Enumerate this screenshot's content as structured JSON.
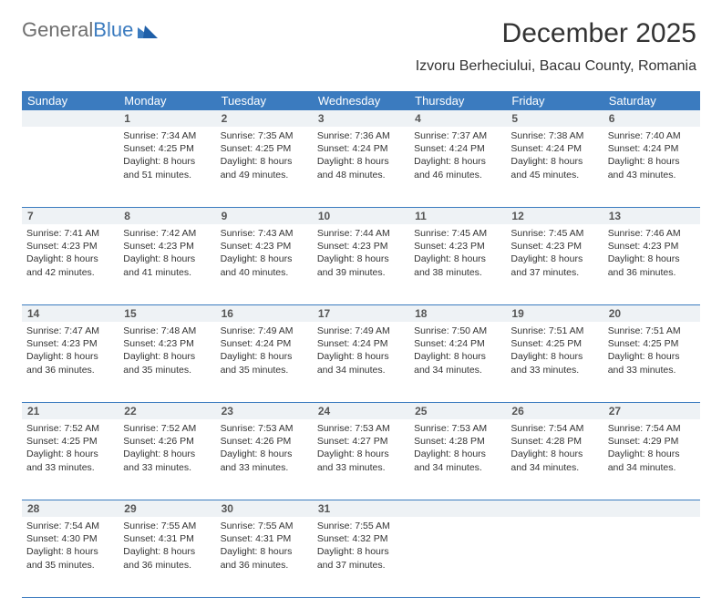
{
  "logo": {
    "part1": "General",
    "part2": "Blue"
  },
  "title": "December 2025",
  "subtitle": "Izvoru Berheciului, Bacau County, Romania",
  "colors": {
    "header_bg": "#3b7bbf",
    "header_text": "#ffffff",
    "daynum_bg": "#eef2f5",
    "daynum_text": "#555555",
    "body_text": "#333333",
    "rule": "#3b7bbf",
    "page_bg": "#ffffff",
    "logo_gray": "#6f6f6f",
    "logo_blue": "#3b7bbf"
  },
  "typography": {
    "title_fontsize": 30,
    "subtitle_fontsize": 16,
    "header_fontsize": 13,
    "daynum_fontsize": 12,
    "cell_fontsize": 10.5
  },
  "days_of_week": [
    "Sunday",
    "Monday",
    "Tuesday",
    "Wednesday",
    "Thursday",
    "Friday",
    "Saturday"
  ],
  "weeks": [
    {
      "nums": [
        "",
        "1",
        "2",
        "3",
        "4",
        "5",
        "6"
      ],
      "cells": [
        {
          "sunrise": "",
          "sunset": "",
          "daylight": ""
        },
        {
          "sunrise": "Sunrise: 7:34 AM",
          "sunset": "Sunset: 4:25 PM",
          "daylight": "Daylight: 8 hours and 51 minutes."
        },
        {
          "sunrise": "Sunrise: 7:35 AM",
          "sunset": "Sunset: 4:25 PM",
          "daylight": "Daylight: 8 hours and 49 minutes."
        },
        {
          "sunrise": "Sunrise: 7:36 AM",
          "sunset": "Sunset: 4:24 PM",
          "daylight": "Daylight: 8 hours and 48 minutes."
        },
        {
          "sunrise": "Sunrise: 7:37 AM",
          "sunset": "Sunset: 4:24 PM",
          "daylight": "Daylight: 8 hours and 46 minutes."
        },
        {
          "sunrise": "Sunrise: 7:38 AM",
          "sunset": "Sunset: 4:24 PM",
          "daylight": "Daylight: 8 hours and 45 minutes."
        },
        {
          "sunrise": "Sunrise: 7:40 AM",
          "sunset": "Sunset: 4:24 PM",
          "daylight": "Daylight: 8 hours and 43 minutes."
        }
      ]
    },
    {
      "nums": [
        "7",
        "8",
        "9",
        "10",
        "11",
        "12",
        "13"
      ],
      "cells": [
        {
          "sunrise": "Sunrise: 7:41 AM",
          "sunset": "Sunset: 4:23 PM",
          "daylight": "Daylight: 8 hours and 42 minutes."
        },
        {
          "sunrise": "Sunrise: 7:42 AM",
          "sunset": "Sunset: 4:23 PM",
          "daylight": "Daylight: 8 hours and 41 minutes."
        },
        {
          "sunrise": "Sunrise: 7:43 AM",
          "sunset": "Sunset: 4:23 PM",
          "daylight": "Daylight: 8 hours and 40 minutes."
        },
        {
          "sunrise": "Sunrise: 7:44 AM",
          "sunset": "Sunset: 4:23 PM",
          "daylight": "Daylight: 8 hours and 39 minutes."
        },
        {
          "sunrise": "Sunrise: 7:45 AM",
          "sunset": "Sunset: 4:23 PM",
          "daylight": "Daylight: 8 hours and 38 minutes."
        },
        {
          "sunrise": "Sunrise: 7:45 AM",
          "sunset": "Sunset: 4:23 PM",
          "daylight": "Daylight: 8 hours and 37 minutes."
        },
        {
          "sunrise": "Sunrise: 7:46 AM",
          "sunset": "Sunset: 4:23 PM",
          "daylight": "Daylight: 8 hours and 36 minutes."
        }
      ]
    },
    {
      "nums": [
        "14",
        "15",
        "16",
        "17",
        "18",
        "19",
        "20"
      ],
      "cells": [
        {
          "sunrise": "Sunrise: 7:47 AM",
          "sunset": "Sunset: 4:23 PM",
          "daylight": "Daylight: 8 hours and 36 minutes."
        },
        {
          "sunrise": "Sunrise: 7:48 AM",
          "sunset": "Sunset: 4:23 PM",
          "daylight": "Daylight: 8 hours and 35 minutes."
        },
        {
          "sunrise": "Sunrise: 7:49 AM",
          "sunset": "Sunset: 4:24 PM",
          "daylight": "Daylight: 8 hours and 35 minutes."
        },
        {
          "sunrise": "Sunrise: 7:49 AM",
          "sunset": "Sunset: 4:24 PM",
          "daylight": "Daylight: 8 hours and 34 minutes."
        },
        {
          "sunrise": "Sunrise: 7:50 AM",
          "sunset": "Sunset: 4:24 PM",
          "daylight": "Daylight: 8 hours and 34 minutes."
        },
        {
          "sunrise": "Sunrise: 7:51 AM",
          "sunset": "Sunset: 4:25 PM",
          "daylight": "Daylight: 8 hours and 33 minutes."
        },
        {
          "sunrise": "Sunrise: 7:51 AM",
          "sunset": "Sunset: 4:25 PM",
          "daylight": "Daylight: 8 hours and 33 minutes."
        }
      ]
    },
    {
      "nums": [
        "21",
        "22",
        "23",
        "24",
        "25",
        "26",
        "27"
      ],
      "cells": [
        {
          "sunrise": "Sunrise: 7:52 AM",
          "sunset": "Sunset: 4:25 PM",
          "daylight": "Daylight: 8 hours and 33 minutes."
        },
        {
          "sunrise": "Sunrise: 7:52 AM",
          "sunset": "Sunset: 4:26 PM",
          "daylight": "Daylight: 8 hours and 33 minutes."
        },
        {
          "sunrise": "Sunrise: 7:53 AM",
          "sunset": "Sunset: 4:26 PM",
          "daylight": "Daylight: 8 hours and 33 minutes."
        },
        {
          "sunrise": "Sunrise: 7:53 AM",
          "sunset": "Sunset: 4:27 PM",
          "daylight": "Daylight: 8 hours and 33 minutes."
        },
        {
          "sunrise": "Sunrise: 7:53 AM",
          "sunset": "Sunset: 4:28 PM",
          "daylight": "Daylight: 8 hours and 34 minutes."
        },
        {
          "sunrise": "Sunrise: 7:54 AM",
          "sunset": "Sunset: 4:28 PM",
          "daylight": "Daylight: 8 hours and 34 minutes."
        },
        {
          "sunrise": "Sunrise: 7:54 AM",
          "sunset": "Sunset: 4:29 PM",
          "daylight": "Daylight: 8 hours and 34 minutes."
        }
      ]
    },
    {
      "nums": [
        "28",
        "29",
        "30",
        "31",
        "",
        "",
        ""
      ],
      "cells": [
        {
          "sunrise": "Sunrise: 7:54 AM",
          "sunset": "Sunset: 4:30 PM",
          "daylight": "Daylight: 8 hours and 35 minutes."
        },
        {
          "sunrise": "Sunrise: 7:55 AM",
          "sunset": "Sunset: 4:31 PM",
          "daylight": "Daylight: 8 hours and 36 minutes."
        },
        {
          "sunrise": "Sunrise: 7:55 AM",
          "sunset": "Sunset: 4:31 PM",
          "daylight": "Daylight: 8 hours and 36 minutes."
        },
        {
          "sunrise": "Sunrise: 7:55 AM",
          "sunset": "Sunset: 4:32 PM",
          "daylight": "Daylight: 8 hours and 37 minutes."
        },
        {
          "sunrise": "",
          "sunset": "",
          "daylight": ""
        },
        {
          "sunrise": "",
          "sunset": "",
          "daylight": ""
        },
        {
          "sunrise": "",
          "sunset": "",
          "daylight": ""
        }
      ]
    }
  ]
}
